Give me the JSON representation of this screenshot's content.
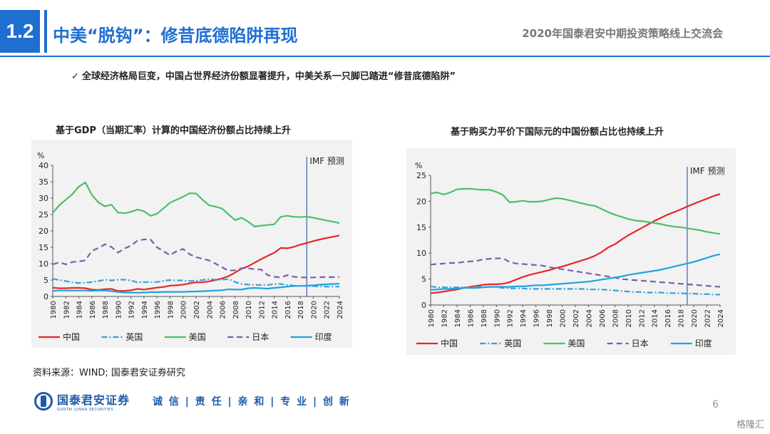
{
  "header": {
    "section_number": "1.2",
    "title": "中美“脱钩”：修昔底德陷阱再现",
    "event": "2020年国泰君安中期投资策略线上交流会"
  },
  "bullet": {
    "check": "✓",
    "text": "全球经济格局巨变，中国占世界经济份额显著提升，中美关系一只脚已踏进“修昔底德陷阱”"
  },
  "colors": {
    "accent": "#1f6fd1",
    "china": "#e8262a",
    "uk": "#3aa0dc",
    "usa": "#4cbf6a",
    "japan": "#7a5fa6",
    "india": "#1fa3e0"
  },
  "chart_data": [
    {
      "type": "line",
      "title": "基于GDP（当期汇率）计算的中国经济份额占比持续上升",
      "unit_label": "%",
      "annotation": "IMF 预测",
      "forecast_from": 2019,
      "xlim": [
        1980,
        2024
      ],
      "ylim": [
        0,
        40
      ],
      "yticks": [
        0,
        5,
        10,
        15,
        20,
        25,
        30,
        35,
        40
      ],
      "xticks": [
        1980,
        1982,
        1984,
        1986,
        1988,
        1990,
        1992,
        1994,
        1996,
        1998,
        2000,
        2002,
        2004,
        2006,
        2008,
        2010,
        2012,
        2014,
        2016,
        2018,
        2020,
        2022,
        2024
      ],
      "grid": false,
      "legend": "bottom",
      "x": [
        1980,
        1981,
        1982,
        1983,
        1984,
        1985,
        1986,
        1987,
        1988,
        1989,
        1990,
        1991,
        1992,
        1993,
        1994,
        1995,
        1996,
        1997,
        1998,
        1999,
        2000,
        2001,
        2002,
        2003,
        2004,
        2005,
        2006,
        2007,
        2008,
        2009,
        2010,
        2011,
        2012,
        2013,
        2014,
        2015,
        2016,
        2017,
        2018,
        2019,
        2020,
        2021,
        2022,
        2023,
        2024
      ],
      "series": [
        {
          "name": "中国",
          "color": "#e8262a",
          "dash": "solid",
          "values": [
            2.7,
            2.5,
            2.5,
            2.6,
            2.6,
            2.5,
            2.1,
            2.0,
            2.2,
            2.3,
            1.7,
            1.7,
            1.9,
            2.3,
            2.1,
            2.4,
            2.7,
            2.9,
            3.3,
            3.4,
            3.6,
            4.0,
            4.3,
            4.3,
            4.6,
            5.0,
            5.5,
            6.2,
            7.3,
            8.5,
            9.2,
            10.3,
            11.4,
            12.4,
            13.3,
            14.8,
            14.7,
            15.1,
            15.8,
            16.3,
            16.9,
            17.4,
            17.8,
            18.2,
            18.6
          ]
        },
        {
          "name": "英国",
          "color": "#3aa0dc",
          "dash": "dashdot",
          "values": [
            5.4,
            5.0,
            4.7,
            4.3,
            4.1,
            4.2,
            4.4,
            4.7,
            5.1,
            4.9,
            5.1,
            5.1,
            4.9,
            4.3,
            4.4,
            4.4,
            4.4,
            4.8,
            5.0,
            4.9,
            4.9,
            4.7,
            4.8,
            5.0,
            5.3,
            5.1,
            5.1,
            5.3,
            4.4,
            3.8,
            3.6,
            3.5,
            3.5,
            3.5,
            3.8,
            3.8,
            3.5,
            3.3,
            3.3,
            3.2,
            3.1,
            3.1,
            3.0,
            3.0,
            3.0
          ]
        },
        {
          "name": "美国",
          "color": "#4cbf6a",
          "dash": "solid",
          "values": [
            25.5,
            27.8,
            29.5,
            31.2,
            33.5,
            34.8,
            31.0,
            28.7,
            27.5,
            28.0,
            25.6,
            25.4,
            25.8,
            26.5,
            26.0,
            24.6,
            25.2,
            26.9,
            28.6,
            29.5,
            30.4,
            31.5,
            31.4,
            29.5,
            27.8,
            27.4,
            26.8,
            25.0,
            23.3,
            24.0,
            22.8,
            21.3,
            21.6,
            21.8,
            22.0,
            24.3,
            24.6,
            24.3,
            24.2,
            24.4,
            24.0,
            23.6,
            23.2,
            22.8,
            22.4
          ]
        },
        {
          "name": "日本",
          "color": "#7a5fa6",
          "dash": "dash",
          "values": [
            9.8,
            10.4,
            9.8,
            10.5,
            10.7,
            11.0,
            13.9,
            14.8,
            15.9,
            15.1,
            13.4,
            14.6,
            15.5,
            17.0,
            17.4,
            17.4,
            15.0,
            13.8,
            12.6,
            13.8,
            14.5,
            12.9,
            12.0,
            11.5,
            11.0,
            10.0,
            8.9,
            7.9,
            8.0,
            8.6,
            8.6,
            8.3,
            8.2,
            6.5,
            6.0,
            5.8,
            6.5,
            6.0,
            5.8,
            5.8,
            5.8,
            5.9,
            5.9,
            5.9,
            5.9
          ]
        },
        {
          "name": "印度",
          "color": "#1fa3e0",
          "dash": "solid",
          "values": [
            1.7,
            1.8,
            1.8,
            1.8,
            1.8,
            1.8,
            1.7,
            1.8,
            1.8,
            1.6,
            1.4,
            1.2,
            1.2,
            1.1,
            1.2,
            1.3,
            1.3,
            1.4,
            1.4,
            1.4,
            1.4,
            1.5,
            1.5,
            1.6,
            1.7,
            1.8,
            1.9,
            2.2,
            2.1,
            2.1,
            2.5,
            2.6,
            2.5,
            2.4,
            2.6,
            2.8,
            3.0,
            3.2,
            3.2,
            3.3,
            3.4,
            3.6,
            3.7,
            3.8,
            3.9
          ]
        }
      ]
    },
    {
      "type": "line",
      "title": "基于购买力平价下国际元的中国份额占比也持续上升",
      "unit_label": "%",
      "annotation": "IMF 预测",
      "forecast_from": 2019,
      "xlim": [
        1980,
        2024
      ],
      "ylim": [
        0,
        25
      ],
      "yticks": [
        0,
        5,
        10,
        15,
        20,
        25
      ],
      "xticks": [
        1980,
        1982,
        1984,
        1986,
        1988,
        1990,
        1992,
        1994,
        1996,
        1998,
        2000,
        2002,
        2004,
        2006,
        2008,
        2010,
        2012,
        2014,
        2016,
        2018,
        2020,
        2022,
        2024
      ],
      "grid": false,
      "legend": "bottom",
      "x": [
        1980,
        1981,
        1982,
        1983,
        1984,
        1985,
        1986,
        1987,
        1988,
        1989,
        1990,
        1991,
        1992,
        1993,
        1994,
        1995,
        1996,
        1997,
        1998,
        1999,
        2000,
        2001,
        2002,
        2003,
        2004,
        2005,
        2006,
        2007,
        2008,
        2009,
        2010,
        2011,
        2012,
        2013,
        2014,
        2015,
        2016,
        2017,
        2018,
        2019,
        2020,
        2021,
        2022,
        2023,
        2024
      ],
      "series": [
        {
          "name": "中国",
          "color": "#e8262a",
          "dash": "solid",
          "values": [
            2.3,
            2.4,
            2.6,
            2.8,
            3.0,
            3.3,
            3.5,
            3.7,
            3.9,
            4.0,
            4.0,
            4.1,
            4.4,
            4.9,
            5.4,
            5.8,
            6.1,
            6.4,
            6.7,
            7.1,
            7.4,
            7.8,
            8.2,
            8.6,
            9.0,
            9.5,
            10.2,
            11.1,
            11.7,
            12.6,
            13.4,
            14.1,
            14.8,
            15.5,
            16.2,
            16.8,
            17.4,
            17.9,
            18.4,
            19.0,
            19.5,
            20.0,
            20.5,
            21.0,
            21.4
          ]
        },
        {
          "name": "英国",
          "color": "#3aa0dc",
          "dash": "dashdot",
          "values": [
            3.6,
            3.4,
            3.4,
            3.4,
            3.4,
            3.4,
            3.4,
            3.5,
            3.5,
            3.5,
            3.4,
            3.3,
            3.2,
            3.2,
            3.2,
            3.1,
            3.1,
            3.1,
            3.1,
            3.1,
            3.1,
            3.1,
            3.1,
            3.1,
            3.0,
            3.0,
            3.0,
            2.9,
            2.8,
            2.7,
            2.6,
            2.5,
            2.5,
            2.4,
            2.4,
            2.4,
            2.3,
            2.3,
            2.3,
            2.2,
            2.2,
            2.1,
            2.1,
            2.0,
            2.0
          ]
        },
        {
          "name": "美国",
          "color": "#4cbf6a",
          "dash": "solid",
          "values": [
            21.5,
            21.7,
            21.3,
            21.7,
            22.3,
            22.4,
            22.4,
            22.3,
            22.2,
            22.2,
            21.8,
            21.2,
            19.8,
            19.9,
            20.1,
            19.9,
            19.9,
            20.0,
            20.3,
            20.6,
            20.5,
            20.2,
            19.9,
            19.6,
            19.3,
            19.1,
            18.5,
            17.9,
            17.4,
            17.0,
            16.6,
            16.3,
            16.2,
            16.0,
            15.8,
            15.6,
            15.3,
            15.1,
            15.0,
            14.8,
            14.6,
            14.4,
            14.1,
            13.9,
            13.7
          ]
        },
        {
          "name": "日本",
          "color": "#7a5fa6",
          "dash": "dash",
          "values": [
            7.8,
            7.9,
            8.0,
            8.1,
            8.1,
            8.3,
            8.4,
            8.5,
            8.8,
            8.9,
            9.0,
            9.0,
            8.3,
            8.0,
            7.9,
            7.8,
            7.7,
            7.6,
            7.3,
            7.1,
            6.9,
            6.7,
            6.5,
            6.3,
            6.1,
            5.9,
            5.7,
            5.5,
            5.3,
            5.0,
            4.9,
            4.8,
            4.7,
            4.6,
            4.5,
            4.4,
            4.3,
            4.2,
            4.1,
            4.0,
            3.9,
            3.8,
            3.7,
            3.6,
            3.5
          ]
        },
        {
          "name": "印度",
          "color": "#1fa3e0",
          "dash": "solid",
          "values": [
            2.9,
            3.0,
            3.1,
            3.1,
            3.2,
            3.3,
            3.3,
            3.3,
            3.4,
            3.5,
            3.5,
            3.5,
            3.5,
            3.6,
            3.6,
            3.7,
            3.8,
            3.8,
            3.9,
            4.0,
            4.1,
            4.2,
            4.3,
            4.4,
            4.5,
            4.7,
            4.9,
            5.1,
            5.3,
            5.5,
            5.8,
            6.0,
            6.2,
            6.4,
            6.6,
            6.8,
            7.1,
            7.4,
            7.7,
            8.0,
            8.3,
            8.7,
            9.1,
            9.5,
            9.8
          ]
        }
      ]
    }
  ],
  "source": "资料来源：WIND; 国泰君安证券研究",
  "footer": {
    "logo_cn": "国泰君安证券",
    "logo_en": "GUOTAI JUNAN SECURITIES",
    "slogan": "诚 信 | 责 任 | 亲 和 | 专 业 | 创 新",
    "page_number": "6",
    "watermark": "格隆汇"
  }
}
